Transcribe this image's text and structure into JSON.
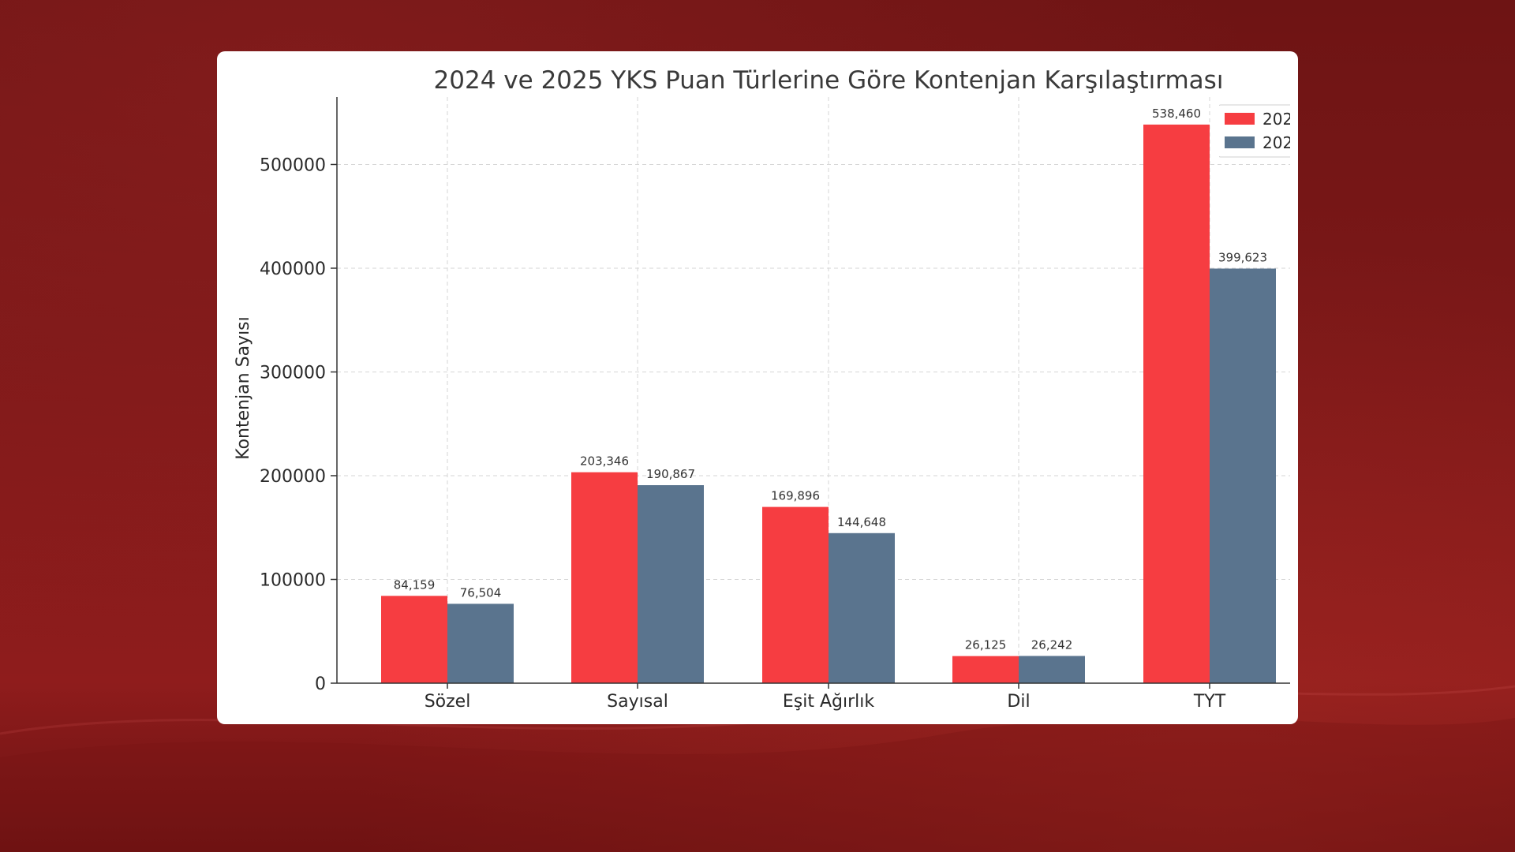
{
  "chart_data": {
    "type": "bar",
    "title": "2024 ve 2025 YKS Puan Türlerine Göre Kontenjan Karşılaştırması",
    "xlabel": "",
    "ylabel": "Kontenjan Sayısı",
    "categories": [
      "Sözel",
      "Sayısal",
      "Eşit Ağırlık",
      "Dil",
      "TYT"
    ],
    "series": [
      {
        "name": "202",
        "color": "#f63d41",
        "values": [
          84159,
          203346,
          169896,
          26125,
          538460
        ],
        "labels": [
          "84,159",
          "203,346",
          "169,896",
          "26,125",
          "538,460"
        ]
      },
      {
        "name": "202",
        "color": "#5a748e",
        "values": [
          76504,
          190867,
          144648,
          26242,
          399623
        ],
        "labels": [
          "76,504",
          "190,867",
          "144,648",
          "26,242",
          "399,623"
        ]
      }
    ],
    "ylim": [
      0,
      565000
    ],
    "yticks": [
      0,
      100000,
      200000,
      300000,
      400000,
      500000
    ],
    "ytick_labels": [
      "0",
      "100000",
      "200000",
      "300000",
      "400000",
      "500000"
    ],
    "grid": true,
    "legend_position": "top-right"
  }
}
